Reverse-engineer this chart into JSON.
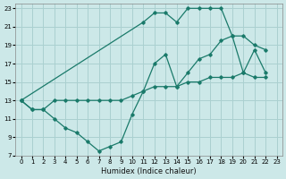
{
  "xlabel": "Humidex (Indice chaleur)",
  "bg_color": "#cce8e8",
  "grid_color": "#aad0d0",
  "line_color": "#1a7a6a",
  "xlim": [
    -0.5,
    23.5
  ],
  "ylim": [
    7,
    23.5
  ],
  "xticks": [
    0,
    1,
    2,
    3,
    4,
    5,
    6,
    7,
    8,
    9,
    10,
    11,
    12,
    13,
    14,
    15,
    16,
    17,
    18,
    19,
    20,
    21,
    22,
    23
  ],
  "yticks": [
    7,
    9,
    11,
    13,
    15,
    17,
    19,
    21,
    23
  ],
  "series": [
    {
      "x": [
        0,
        1,
        2,
        3,
        4,
        5,
        6,
        7,
        8,
        9,
        10,
        11,
        12,
        13,
        14,
        15,
        16,
        17,
        18,
        19,
        20,
        21,
        22
      ],
      "y": [
        13,
        12,
        12,
        11,
        10,
        9.5,
        8.5,
        7.5,
        8,
        8.5,
        11.5,
        14,
        17,
        18,
        14.5,
        16,
        17.5,
        18,
        19.5,
        20,
        16,
        18.5,
        16
      ]
    },
    {
      "x": [
        0,
        1,
        2,
        3,
        4,
        5,
        6,
        7,
        8,
        9,
        10,
        11,
        12,
        13,
        14,
        15,
        16,
        17,
        18,
        19,
        20,
        21,
        22
      ],
      "y": [
        13,
        12,
        12,
        13,
        13,
        13,
        13,
        13,
        13,
        13,
        13.5,
        14,
        14.5,
        14.5,
        14.5,
        15,
        15,
        15.5,
        15.5,
        15.5,
        16,
        15.5,
        15.5
      ]
    },
    {
      "x": [
        0,
        11,
        12,
        13,
        14,
        15,
        16,
        17,
        18,
        19,
        20,
        21,
        22
      ],
      "y": [
        13,
        21.5,
        22.5,
        22.5,
        21.5,
        23,
        23,
        23,
        23,
        20,
        20,
        19,
        18.5
      ]
    }
  ]
}
